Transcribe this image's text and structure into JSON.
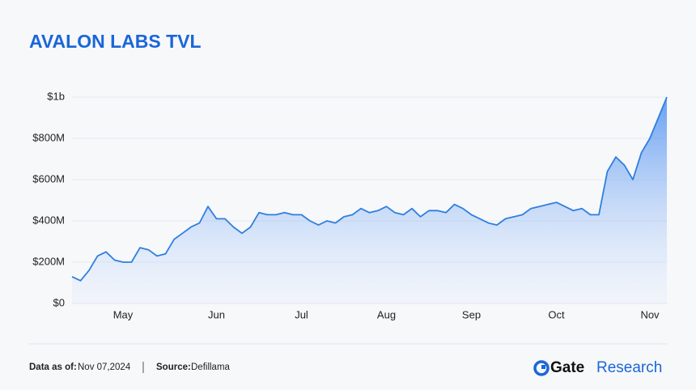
{
  "chart_data": {
    "type": "area",
    "title": "AVALON LABS TVL",
    "categories": [
      null,
      null,
      null,
      null,
      null,
      null,
      "May",
      null,
      null,
      null,
      null,
      null,
      null,
      null,
      null,
      null,
      null,
      "Jun",
      null,
      null,
      null,
      null,
      null,
      null,
      null,
      null,
      null,
      "Jul",
      null,
      null,
      null,
      null,
      null,
      null,
      null,
      null,
      null,
      "Aug",
      null,
      null,
      null,
      null,
      null,
      null,
      null,
      null,
      null,
      "Sep",
      null,
      null,
      null,
      null,
      null,
      null,
      null,
      null,
      null,
      "Oct",
      null,
      null,
      null,
      null,
      null,
      null,
      null,
      null,
      null,
      null,
      "Nov",
      null,
      null
    ],
    "values": [
      130,
      110,
      160,
      230,
      250,
      210,
      200,
      200,
      270,
      260,
      230,
      240,
      310,
      340,
      370,
      390,
      470,
      410,
      410,
      370,
      340,
      370,
      440,
      430,
      430,
      440,
      430,
      430,
      400,
      380,
      400,
      390,
      420,
      430,
      460,
      440,
      450,
      470,
      440,
      430,
      460,
      420,
      450,
      450,
      440,
      480,
      460,
      430,
      410,
      390,
      380,
      410,
      420,
      430,
      460,
      470,
      480,
      490,
      470,
      450,
      460,
      430,
      430,
      640,
      710,
      670,
      600,
      730,
      800,
      900,
      1000
    ],
    "color": "#2f7fe0",
    "ylim": [
      0,
      1000
    ],
    "yticks": [
      {
        "value": 0,
        "label": "$0"
      },
      {
        "value": 200,
        "label": "$200M"
      },
      {
        "value": 400,
        "label": "$400M"
      },
      {
        "value": 600,
        "label": "$600M"
      },
      {
        "value": 800,
        "label": "$800M"
      },
      {
        "value": 1000,
        "label": "$1b"
      }
    ],
    "grid": true
  },
  "footer": {
    "date_label": "Data as of:",
    "date": "Nov 07,2024",
    "source_label": "Source:",
    "source": "Defillama"
  },
  "logo": {
    "brand": "Gate",
    "product": "Research"
  }
}
